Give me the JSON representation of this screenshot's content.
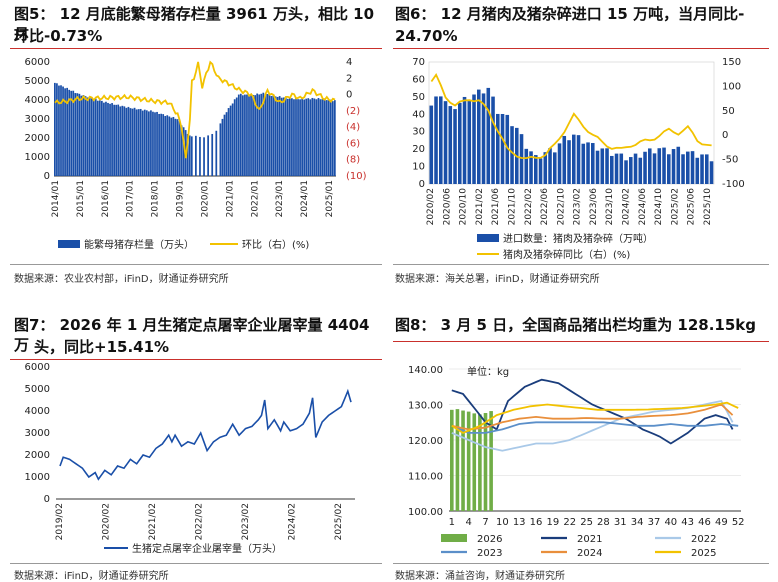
{
  "panels": [
    {
      "title_line1": "图5：  12 月底能繁母猪存栏量 3961 万头，相比 10 月",
      "title_line2": "环比-0.73%",
      "source": "数据来源：农业农村部，iFinD，财通证券研究所"
    },
    {
      "title_line1": "图6：  12 月猪肉及猪杂碎进口  15 万吨，当月同比-",
      "title_line2": "24.70%",
      "source": "数据来源：海关总署，iFinD，财通证券研究所"
    },
    {
      "title_line1": "图7：  2026 年 1 月生猪定点屠宰企业屠宰量 4404 万",
      "title_line2": "头，同比+15.41%",
      "source": "数据来源：iFinD，财通证券研究所"
    },
    {
      "title_line1": "图8：  3 月 5 日，全国商品猪出栏均重为 128.15kg",
      "title_line2": "",
      "source": "数据来源：涌益咨询，财通证券研究所"
    }
  ],
  "chart_data": [
    {
      "type": "bar",
      "title": "能繁母猪存栏量",
      "y_left": {
        "min": 0,
        "max": 6000,
        "ticks": [
          "0",
          "1000",
          "2000",
          "3000",
          "4000",
          "5000",
          "6000"
        ]
      },
      "y_right": {
        "min": -10,
        "max": 4,
        "ticks": [
          "4",
          "2",
          "0",
          "(2)",
          "(4)",
          "(6)",
          "(8)",
          "(10)"
        ]
      },
      "x_tick_labels": [
        "2014/01",
        "2015/01",
        "2016/01",
        "2017/01",
        "2018/01",
        "2019/01",
        "2020/01",
        "2021/01",
        "2022/01",
        "2023/01",
        "2024/01",
        "2025/01"
      ],
      "anchors_bar": [
        [
          0,
          4900
        ],
        [
          12,
          4300
        ],
        [
          24,
          3900
        ],
        [
          36,
          3600
        ],
        [
          48,
          3400
        ],
        [
          60,
          3000
        ],
        [
          66,
          2100
        ],
        [
          72,
          2050
        ],
        [
          78,
          2200
        ],
        [
          84,
          3400
        ],
        [
          90,
          4300
        ],
        [
          96,
          4250
        ],
        [
          102,
          4350
        ],
        [
          108,
          4200
        ],
        [
          114,
          4100
        ],
        [
          120,
          4050
        ],
        [
          126,
          4080
        ],
        [
          132,
          4050
        ],
        [
          137,
          3961
        ]
      ],
      "anchors_line": [
        [
          0,
          -1
        ],
        [
          6,
          -0.8
        ],
        [
          12,
          -0.5
        ],
        [
          24,
          -0.4
        ],
        [
          36,
          -0.3
        ],
        [
          48,
          -0.8
        ],
        [
          56,
          -1.0
        ],
        [
          60,
          -2.5
        ],
        [
          62,
          -4
        ],
        [
          64,
          -8
        ],
        [
          66,
          -3
        ],
        [
          67,
          1.5
        ],
        [
          68,
          2
        ],
        [
          69,
          3
        ],
        [
          70,
          3.8
        ],
        [
          72,
          1
        ],
        [
          76,
          4
        ],
        [
          80,
          2
        ],
        [
          84,
          1.5
        ],
        [
          90,
          0.6
        ],
        [
          96,
          0
        ],
        [
          100,
          -2
        ],
        [
          104,
          0.5
        ],
        [
          110,
          -1.0
        ],
        [
          116,
          0
        ],
        [
          120,
          -0.5
        ],
        [
          126,
          0.5
        ],
        [
          132,
          -0.5
        ],
        [
          137,
          -0.73
        ]
      ],
      "legend": [
        "能繁母猪存栏量（万头）",
        "环比（右）(%)"
      ],
      "colors": {
        "bar": "#1a4fa8",
        "line": "#f2c200"
      }
    },
    {
      "type": "bar",
      "title": "猪肉及猪杂碎进口",
      "y_left": {
        "min": 0,
        "max": 70,
        "ticks": [
          "0",
          "10",
          "20",
          "30",
          "40",
          "50",
          "60",
          "70"
        ]
      },
      "y_right": {
        "min": -100,
        "max": 150,
        "ticks": [
          "150",
          "100",
          "50",
          "0",
          "-50",
          "-100"
        ]
      },
      "x_tick_labels": [
        "2020/02",
        "2020/06",
        "2020/10",
        "2021/02",
        "2021/06",
        "2021/10",
        "2022/02",
        "2022/06",
        "2022/10",
        "2023/02",
        "2023/06",
        "2023/10",
        "2024/02",
        "2024/06",
        "2024/10",
        "2025/02",
        "2025/06",
        "2025/10"
      ],
      "anchors_bar": [
        [
          0,
          45
        ],
        [
          2,
          52
        ],
        [
          4,
          43
        ],
        [
          8,
          50
        ],
        [
          12,
          55
        ],
        [
          14,
          42
        ],
        [
          16,
          38
        ],
        [
          18,
          32
        ],
        [
          20,
          22
        ],
        [
          22,
          15
        ],
        [
          24,
          18
        ],
        [
          26,
          20
        ],
        [
          28,
          26
        ],
        [
          30,
          28
        ],
        [
          32,
          25
        ],
        [
          34,
          22
        ],
        [
          36,
          20
        ],
        [
          38,
          18
        ],
        [
          40,
          16
        ],
        [
          42,
          15
        ],
        [
          44,
          17
        ],
        [
          46,
          19
        ],
        [
          48,
          20
        ],
        [
          50,
          19
        ],
        [
          52,
          20
        ],
        [
          54,
          18
        ],
        [
          56,
          17
        ],
        [
          59,
          15
        ]
      ],
      "anchors_line": [
        [
          0,
          110
        ],
        [
          1,
          120
        ],
        [
          3,
          80
        ],
        [
          5,
          60
        ],
        [
          8,
          75
        ],
        [
          10,
          70
        ],
        [
          12,
          50
        ],
        [
          14,
          10
        ],
        [
          16,
          -30
        ],
        [
          18,
          -40
        ],
        [
          20,
          -50
        ],
        [
          24,
          -40
        ],
        [
          26,
          -20
        ],
        [
          28,
          10
        ],
        [
          30,
          40
        ],
        [
          32,
          20
        ],
        [
          34,
          0
        ],
        [
          36,
          -15
        ],
        [
          38,
          -25
        ],
        [
          40,
          -30
        ],
        [
          42,
          -20
        ],
        [
          44,
          -15
        ],
        [
          46,
          -10
        ],
        [
          48,
          0
        ],
        [
          50,
          10
        ],
        [
          52,
          5
        ],
        [
          54,
          15
        ],
        [
          56,
          -10
        ],
        [
          59,
          -24.7
        ]
      ],
      "legend": [
        "进口数量：猪肉及猪杂碎（万吨）",
        "猪肉及猪杂碎同比（右）(%)"
      ],
      "colors": {
        "bar": "#1a4fa8",
        "line": "#f2c200"
      }
    },
    {
      "type": "line",
      "title": "生猪定点屠宰企业屠宰量",
      "y": {
        "min": 0,
        "max": 6000,
        "ticks": [
          "0",
          "1000",
          "2000",
          "3000",
          "4000",
          "5000",
          "6000"
        ]
      },
      "x_tick_labels": [
        "2019/02",
        "2020/02",
        "2021/02",
        "2022/02",
        "2023/02",
        "2024/02",
        "2025/02"
      ],
      "anchors": [
        [
          0,
          1500
        ],
        [
          1,
          1900
        ],
        [
          3,
          1800
        ],
        [
          5,
          1600
        ],
        [
          7,
          1400
        ],
        [
          9,
          1000
        ],
        [
          11,
          1200
        ],
        [
          12,
          900
        ],
        [
          14,
          1300
        ],
        [
          16,
          1100
        ],
        [
          18,
          1500
        ],
        [
          20,
          1400
        ],
        [
          22,
          1800
        ],
        [
          24,
          1600
        ],
        [
          26,
          2000
        ],
        [
          28,
          1900
        ],
        [
          30,
          2300
        ],
        [
          32,
          2500
        ],
        [
          34,
          2900
        ],
        [
          35,
          2600
        ],
        [
          36,
          2900
        ],
        [
          38,
          2400
        ],
        [
          40,
          2600
        ],
        [
          42,
          2500
        ],
        [
          44,
          3000
        ],
        [
          46,
          2200
        ],
        [
          48,
          2600
        ],
        [
          50,
          2800
        ],
        [
          52,
          2900
        ],
        [
          54,
          3400
        ],
        [
          56,
          2900
        ],
        [
          58,
          3200
        ],
        [
          60,
          3300
        ],
        [
          62,
          3600
        ],
        [
          63,
          3800
        ],
        [
          64,
          4500
        ],
        [
          65,
          3200
        ],
        [
          67,
          3600
        ],
        [
          69,
          3100
        ],
        [
          70,
          3500
        ],
        [
          72,
          3100
        ],
        [
          74,
          3200
        ],
        [
          76,
          3400
        ],
        [
          78,
          3900
        ],
        [
          79,
          4600
        ],
        [
          80,
          2800
        ],
        [
          82,
          3500
        ],
        [
          84,
          3800
        ],
        [
          86,
          4000
        ],
        [
          88,
          4200
        ],
        [
          90,
          4900
        ],
        [
          91,
          4404
        ]
      ],
      "legend": [
        "生猪定点屠宰企业屠宰量（万头）"
      ],
      "colors": {
        "line": "#1a4fa8"
      }
    },
    {
      "type": "line",
      "title": "商品猪出栏均重",
      "unit_label": "单位：kg",
      "y": {
        "min": 100,
        "max": 140,
        "ticks": [
          "140.00",
          "130.00",
          "120.00",
          "110.00",
          "100.00"
        ]
      },
      "x_tick_labels": [
        "1",
        "4",
        "7",
        "10",
        "13",
        "16",
        "19",
        "22",
        "25",
        "28",
        "31",
        "34",
        "37",
        "40",
        "43",
        "46",
        "49",
        "52"
      ],
      "series": [
        {
          "name": "2026",
          "kind": "bar",
          "color": "#70ad47",
          "values": [
            128.5,
            128.7,
            128.3,
            128.0,
            127.5,
            127.2,
            127.6,
            128.15
          ]
        },
        {
          "name": "2021",
          "kind": "line",
          "color": "#1a3d7c",
          "anchors": [
            [
              1,
              134
            ],
            [
              3,
              133
            ],
            [
              5,
              129
            ],
            [
              7,
              125
            ],
            [
              9,
              123
            ],
            [
              11,
              131
            ],
            [
              14,
              135
            ],
            [
              17,
              137
            ],
            [
              20,
              136
            ],
            [
              23,
              133
            ],
            [
              26,
              130
            ],
            [
              29,
              128
            ],
            [
              32,
              126
            ],
            [
              35,
              123
            ],
            [
              38,
              121
            ],
            [
              40,
              119
            ],
            [
              43,
              122
            ],
            [
              46,
              126
            ],
            [
              48,
              127
            ],
            [
              50,
              126
            ],
            [
              51,
              123
            ]
          ]
        },
        {
          "name": "2022",
          "kind": "line",
          "color": "#a9c9e8",
          "anchors": [
            [
              1,
              122
            ],
            [
              4,
              120
            ],
            [
              7,
              118
            ],
            [
              10,
              117
            ],
            [
              13,
              118
            ],
            [
              16,
              119
            ],
            [
              19,
              119
            ],
            [
              22,
              120
            ],
            [
              25,
              122
            ],
            [
              28,
              124
            ],
            [
              31,
              126
            ],
            [
              34,
              127
            ],
            [
              37,
              128
            ],
            [
              40,
              128.5
            ],
            [
              43,
              129
            ],
            [
              46,
              130
            ],
            [
              49,
              131
            ],
            [
              51,
              125
            ]
          ]
        },
        {
          "name": "2023",
          "kind": "line",
          "color": "#5b8fc9",
          "anchors": [
            [
              1,
              124
            ],
            [
              4,
              122
            ],
            [
              7,
              122
            ],
            [
              10,
              123
            ],
            [
              13,
              124.5
            ],
            [
              16,
              125
            ],
            [
              19,
              125
            ],
            [
              22,
              125
            ],
            [
              25,
              125
            ],
            [
              28,
              125
            ],
            [
              31,
              124.5
            ],
            [
              34,
              124
            ],
            [
              37,
              124
            ],
            [
              40,
              124.5
            ],
            [
              43,
              124
            ],
            [
              46,
              124
            ],
            [
              49,
              124.5
            ],
            [
              52,
              124
            ]
          ]
        },
        {
          "name": "2024",
          "kind": "line",
          "color": "#e98f3c",
          "anchors": [
            [
              1,
              124
            ],
            [
              4,
              123
            ],
            [
              7,
              123.5
            ],
            [
              10,
              125
            ],
            [
              13,
              126
            ],
            [
              16,
              126.5
            ],
            [
              19,
              126
            ],
            [
              22,
              126
            ],
            [
              25,
              126.2
            ],
            [
              28,
              126
            ],
            [
              31,
              126
            ],
            [
              34,
              126.5
            ],
            [
              37,
              126.8
            ],
            [
              40,
              127
            ],
            [
              43,
              127.5
            ],
            [
              46,
              128.5
            ],
            [
              49,
              130
            ],
            [
              51,
              127
            ]
          ]
        },
        {
          "name": "2025",
          "kind": "line",
          "color": "#f2c200",
          "anchors": [
            [
              1,
              124
            ],
            [
              3,
              122
            ],
            [
              6,
              124
            ],
            [
              9,
              127
            ],
            [
              12,
              128.5
            ],
            [
              15,
              129.5
            ],
            [
              18,
              130
            ],
            [
              21,
              129.5
            ],
            [
              24,
              129
            ],
            [
              27,
              128.5
            ],
            [
              30,
              128.5
            ],
            [
              33,
              128.5
            ],
            [
              36,
              128.6
            ],
            [
              39,
              128.8
            ],
            [
              42,
              129
            ],
            [
              45,
              129.5
            ],
            [
              48,
              130
            ],
            [
              50,
              130.5
            ],
            [
              52,
              129
            ]
          ]
        }
      ],
      "legend": [
        "2026",
        "2021",
        "2022",
        "2023",
        "2024",
        "2025"
      ]
    }
  ]
}
